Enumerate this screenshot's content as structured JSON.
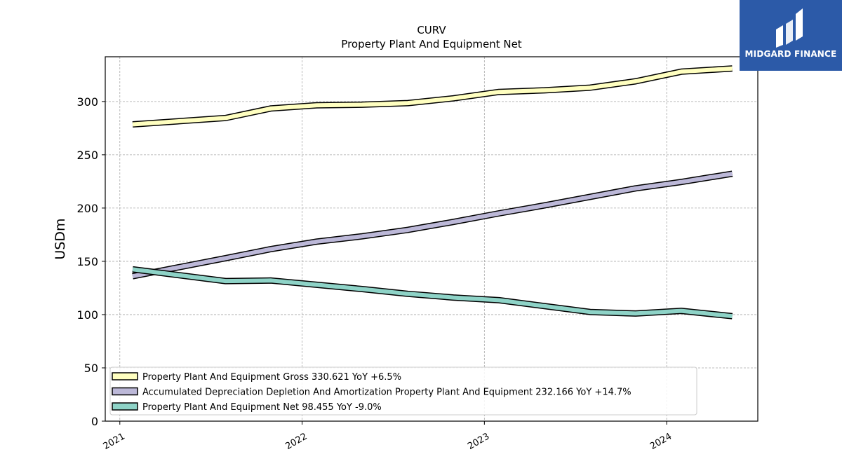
{
  "brand": {
    "name": "MIDGARD FINANCE",
    "bg_color": "#2c5aa8"
  },
  "chart_data": {
    "type": "line",
    "title": "CURV",
    "subtitle": "Property Plant And Equipment Net",
    "ylabel": "USDm",
    "xlabel": "",
    "ylim": [
      0,
      342
    ],
    "xlim": [
      2020.92,
      2024.5
    ],
    "yticks": [
      0,
      50,
      100,
      150,
      200,
      250,
      300
    ],
    "xticks": [
      2021,
      2022,
      2023,
      2024
    ],
    "grid": true,
    "legend_position": "lower-left",
    "series": [
      {
        "name": "Property Plant And Equipment Gross",
        "legend": "Property Plant And Equipment Gross  330.621 YoY +6.5%",
        "color": "#ffffc0",
        "x": [
          2021.07,
          2021.58,
          2021.83,
          2022.08,
          2022.33,
          2022.58,
          2022.83,
          2023.08,
          2023.33,
          2023.58,
          2023.83,
          2024.08,
          2024.36
        ],
        "y": [
          278.5,
          284.5,
          293.5,
          296.5,
          297.0,
          298.5,
          303.0,
          309.0,
          310.5,
          313.0,
          319.0,
          328.0,
          331.0
        ]
      },
      {
        "name": "Accumulated Depreciation Depletion And Amortization Property Plant And Equipment",
        "legend": "Accumulated Depreciation Depletion And Amortization Property Plant And Equipment  232.166 YoY +14.7%",
        "color": "#bcb8d8",
        "x": [
          2021.07,
          2021.58,
          2021.83,
          2022.08,
          2022.33,
          2022.58,
          2022.83,
          2023.08,
          2023.33,
          2023.58,
          2023.83,
          2024.08,
          2024.36
        ],
        "y": [
          136.0,
          153.0,
          161.5,
          168.5,
          173.5,
          179.5,
          187.0,
          195.0,
          202.5,
          210.5,
          218.5,
          224.5,
          232.2
        ]
      },
      {
        "name": "Property Plant And Equipment Net",
        "legend": "Property Plant And Equipment Net  98.455 YoY -9.0%",
        "color": "#8ed3c7",
        "x": [
          2021.07,
          2021.58,
          2021.83,
          2022.08,
          2022.33,
          2022.58,
          2022.83,
          2023.08,
          2023.33,
          2023.58,
          2023.83,
          2024.08,
          2024.36
        ],
        "y": [
          142.5,
          131.5,
          132.0,
          128.0,
          124.0,
          119.5,
          116.0,
          113.5,
          108.0,
          102.5,
          101.0,
          103.5,
          98.5
        ]
      }
    ]
  }
}
